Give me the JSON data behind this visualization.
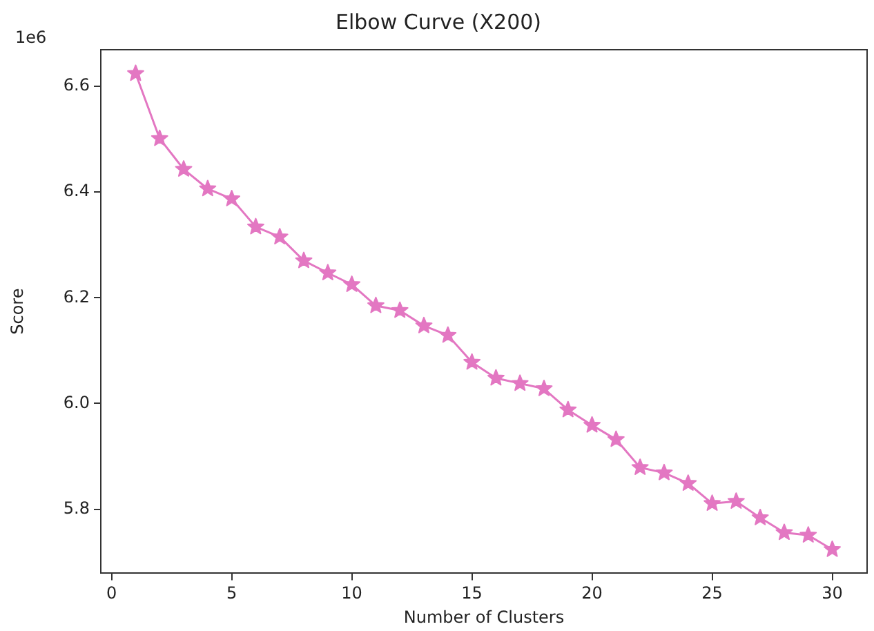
{
  "chart_data": {
    "type": "line",
    "title": "Elbow Curve (X200)",
    "xlabel": "Number of Clusters",
    "ylabel": "Score",
    "annotations": [
      "1e6"
    ],
    "x": [
      1,
      2,
      3,
      4,
      5,
      6,
      7,
      8,
      9,
      10,
      11,
      12,
      13,
      14,
      15,
      16,
      17,
      18,
      19,
      20,
      21,
      22,
      23,
      24,
      25,
      26,
      27,
      28,
      29,
      30
    ],
    "series": [
      {
        "color": "#e377c2",
        "values": [
          6.624,
          6.501,
          6.443,
          6.406,
          6.387,
          6.334,
          6.315,
          6.27,
          6.247,
          6.225,
          6.185,
          6.176,
          6.147,
          6.129,
          6.078,
          6.048,
          6.038,
          6.028,
          5.988,
          5.959,
          5.932,
          5.879,
          5.869,
          5.849,
          5.811,
          5.815,
          5.784,
          5.756,
          5.751,
          5.724
        ]
      }
    ],
    "xlim": [
      -0.45,
      31.45
    ],
    "xticks": [
      0,
      5,
      10,
      15,
      20,
      25,
      30
    ],
    "ylim": [
      5.679,
      6.669
    ],
    "yticks": [
      {
        "value": 5.8,
        "label": "5.8"
      },
      {
        "value": 6.0,
        "label": "6.0"
      },
      {
        "value": 6.2,
        "label": "6.2"
      },
      {
        "value": 6.4,
        "label": "6.4"
      },
      {
        "value": 6.6,
        "label": "6.6"
      }
    ],
    "grid": false,
    "legend": false,
    "marker": "star",
    "line_style": "solid"
  }
}
